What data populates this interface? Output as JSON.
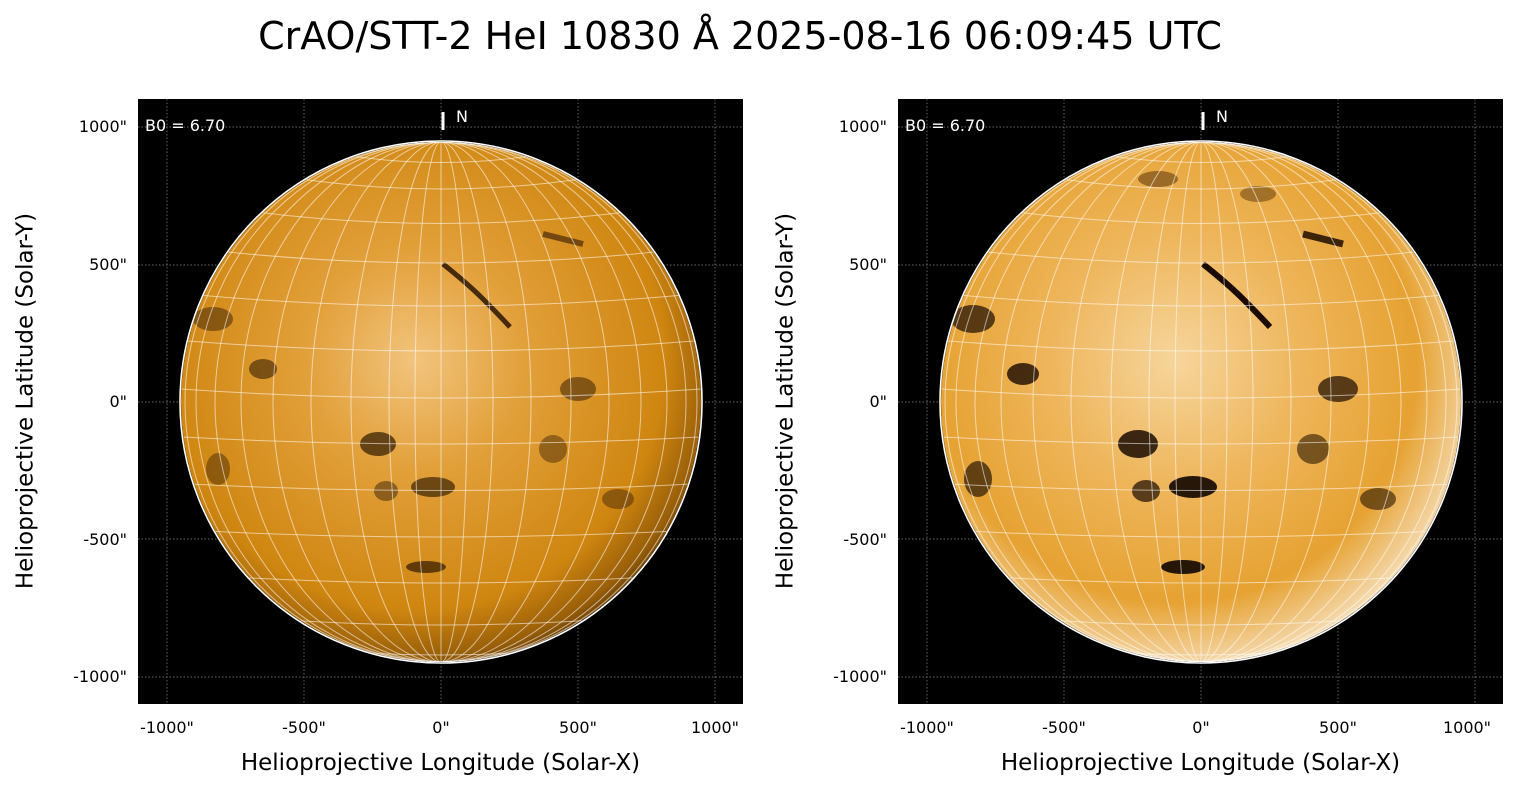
{
  "title": "CrAO/STT-2 HeI 10830 Å 2025-08-16 06:09:45 UTC",
  "panels": [
    {
      "id": "left",
      "b0_label": "B0 = 6.70",
      "north_label": "N",
      "xlabel": "Helioprojective Longitude (Solar-X)",
      "ylabel": "Helioprojective Latitude (Solar-Y)",
      "x_ticks": [
        "-1000\"",
        "-500\"",
        "0\"",
        "500\"",
        "1000\""
      ],
      "y_ticks": [
        "1000\"",
        "500\"",
        "0\"",
        "-500\"",
        "-1000\""
      ],
      "contrast": "normal"
    },
    {
      "id": "right",
      "b0_label": "B0 = 6.70",
      "north_label": "N",
      "xlabel": "Helioprojective Longitude (Solar-X)",
      "ylabel": "Helioprojective Latitude (Solar-Y)",
      "x_ticks": [
        "-1000\"",
        "-500\"",
        "0\"",
        "500\"",
        "1000\""
      ],
      "y_ticks": [
        "1000\"",
        "500\"",
        "0\"",
        "-500\"",
        "-1000\""
      ],
      "contrast": "enhanced"
    }
  ],
  "colors": {
    "disk": "#d98a12",
    "disk_bright": "#f1c27a",
    "background": "#000000",
    "grid": "#ffffff"
  }
}
